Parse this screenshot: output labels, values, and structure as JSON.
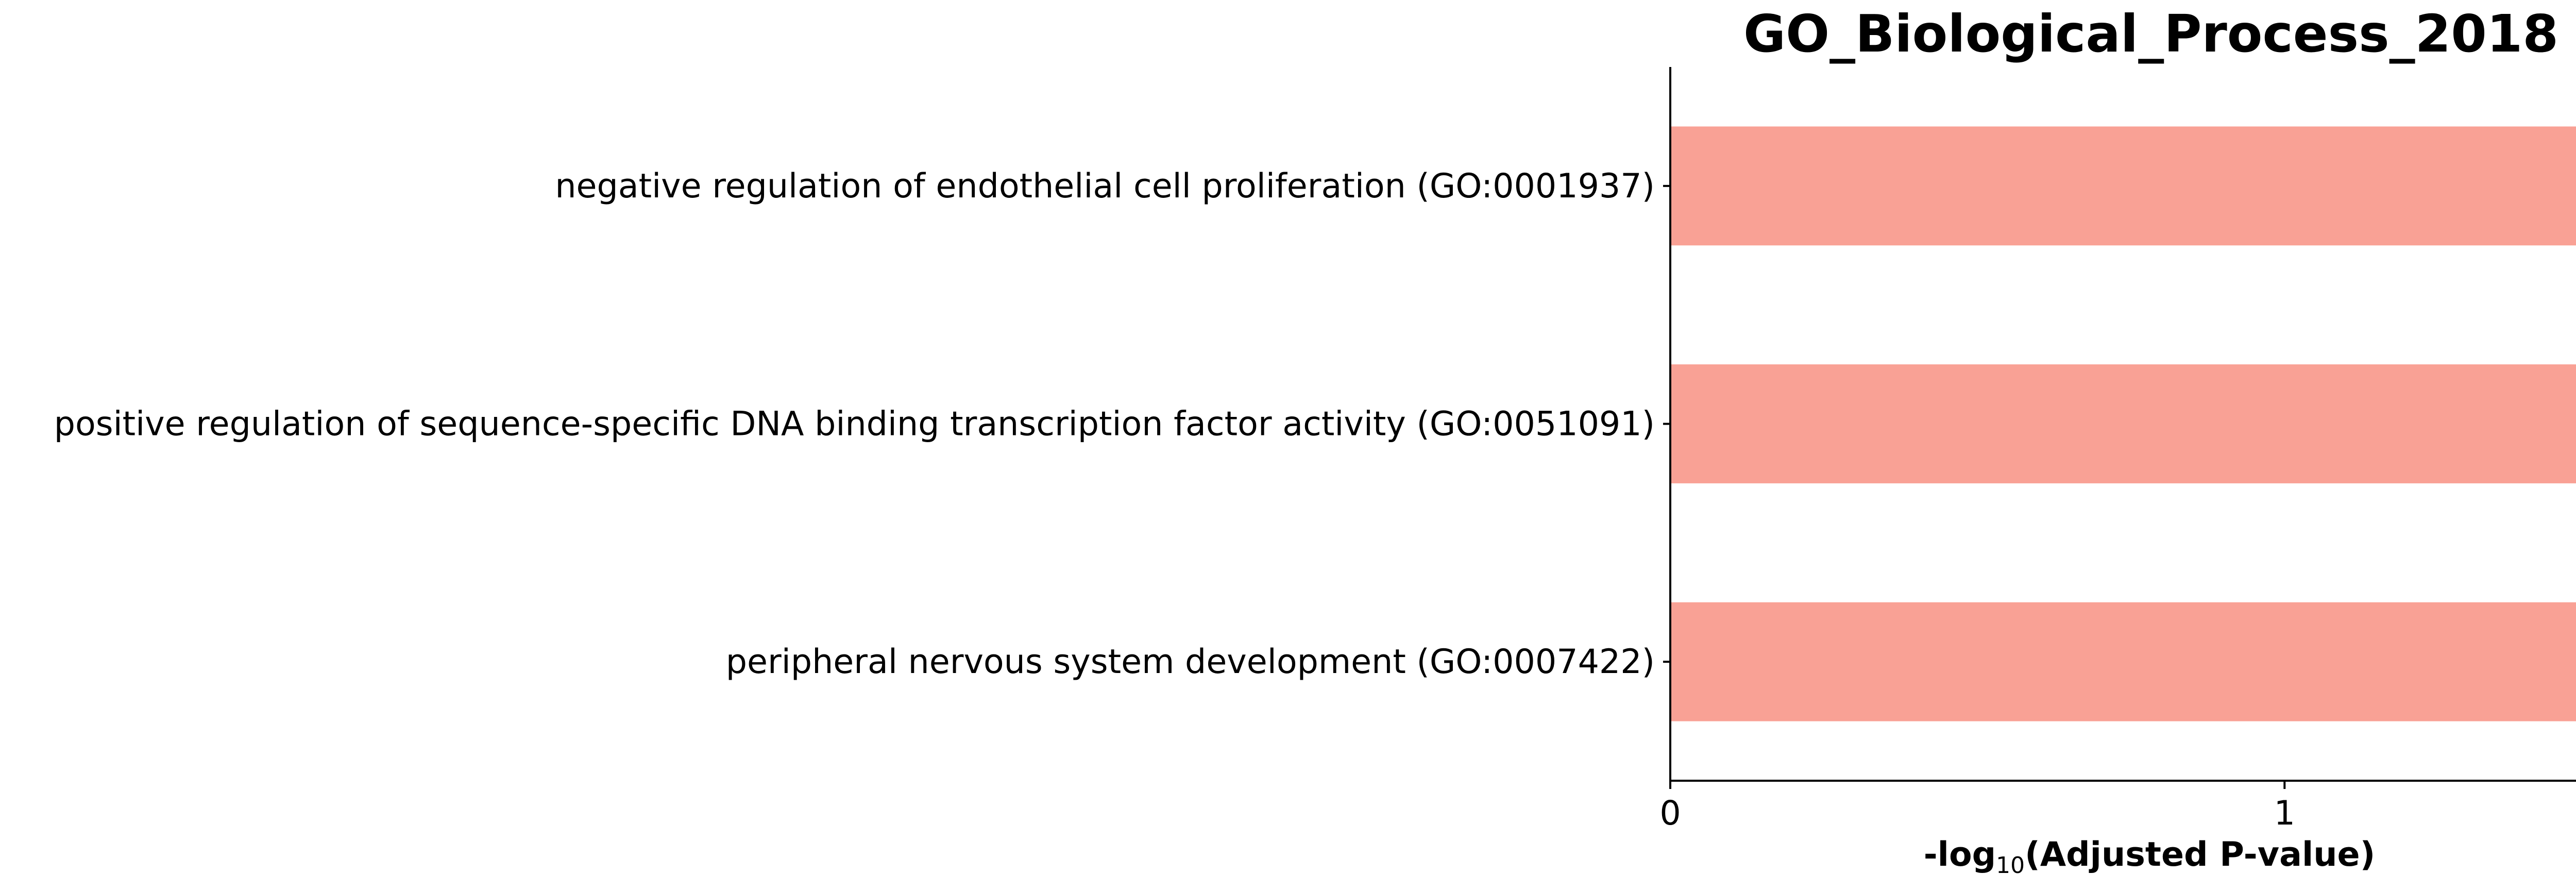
{
  "chart_data": {
    "type": "bar",
    "orientation": "horizontal",
    "title": "GO_Biological_Process_2018",
    "xlabel": {
      "prefix": "-log",
      "subscript": "10",
      "suffix": "(Adjusted P-value)"
    },
    "categories": [
      "negative regulation of endothelial cell proliferation (GO:0001937)",
      "positive regulation of sequence-specific DNA binding transcription factor activity (GO:0051091)",
      "peripheral nervous system development (GO:0007422)"
    ],
    "values": [
      1.48,
      1.48,
      1.48
    ],
    "xlim": [
      0,
      1.56
    ],
    "xticks": [
      0,
      1
    ],
    "xtick_labels": [
      "0",
      "1"
    ],
    "bar_color": "#f9a195",
    "grid": false
  }
}
